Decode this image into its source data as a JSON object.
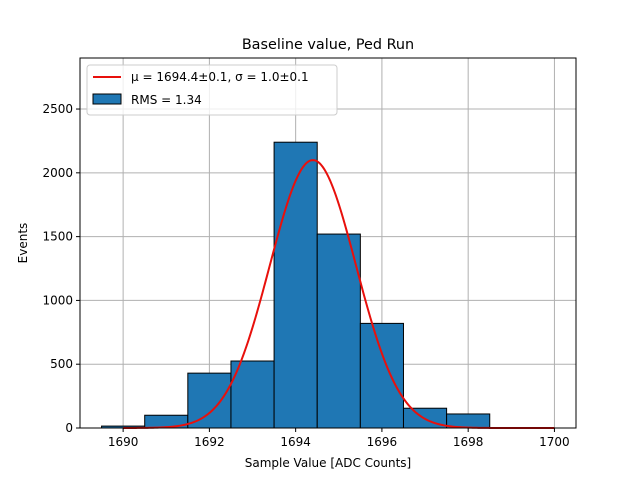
{
  "chart_data": {
    "type": "bar",
    "title": "Baseline value, Ped Run",
    "xlabel": "Sample Value [ADC Counts]",
    "ylabel": "Events",
    "xlim": [
      1689,
      1700.5
    ],
    "ylim": [
      0,
      2900
    ],
    "xticks": [
      1690,
      1692,
      1694,
      1696,
      1698,
      1700
    ],
    "yticks": [
      0,
      500,
      1000,
      1500,
      2000,
      2500
    ],
    "grid": true,
    "legend_position": "top-left",
    "bins": [
      {
        "left": 1689.5,
        "right": 1690.5,
        "count": 15
      },
      {
        "left": 1690.5,
        "right": 1691.5,
        "count": 100
      },
      {
        "left": 1691.5,
        "right": 1692.5,
        "count": 430
      },
      {
        "left": 1692.5,
        "right": 1693.5,
        "count": 525
      },
      {
        "left": 1693.5,
        "right": 1694.5,
        "count": 2240
      },
      {
        "left": 1694.5,
        "right": 1695.5,
        "count": 1520
      },
      {
        "left": 1695.5,
        "right": 1696.5,
        "count": 820
      },
      {
        "left": 1696.5,
        "right": 1697.5,
        "count": 155
      },
      {
        "left": 1697.5,
        "right": 1698.5,
        "count": 110
      }
    ],
    "fit": {
      "mu": 1694.4,
      "sigma": 1.0,
      "amplitude": 2100,
      "x_range": [
        1690,
        1700
      ]
    },
    "legend": {
      "fit_label": "μ = 1694.4±0.1, σ = 1.0±0.1",
      "hist_label": "RMS = 1.34"
    },
    "colors": {
      "bar_fill": "#1f77b4",
      "bar_edge": "#000000",
      "fit_line": "#e8100c",
      "grid": "#b0b0b0"
    }
  }
}
